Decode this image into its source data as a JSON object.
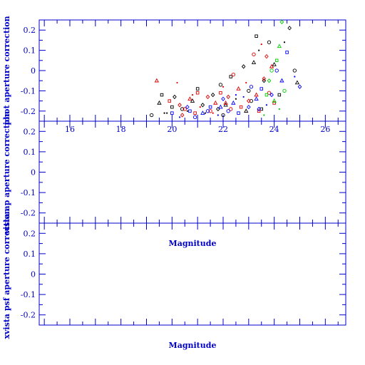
{
  "colors": {
    "axis": "#0000cc",
    "series_black": "#000000",
    "series_red": "#e00000",
    "series_blue": "#0000ff",
    "series_green": "#00cc00"
  },
  "chart_data": [
    {
      "type": "scatter",
      "title": "",
      "xlabel": "",
      "ylabel": "phot aperture correction",
      "xlim": [
        14.8,
        26.8
      ],
      "ylim": [
        -0.25,
        0.25
      ],
      "xticks": [
        16,
        18,
        20,
        22,
        24,
        26
      ],
      "xtick_labels": [
        "16",
        "18",
        "20",
        "22",
        "24",
        "26"
      ],
      "yticks": [
        -0.2,
        -0.1,
        0,
        0.1,
        0.2
      ],
      "ytick_labels": [
        "-0.2",
        "-0.1",
        "0",
        "0.1",
        "0.2"
      ],
      "grid": false,
      "series": [
        {
          "color": "black",
          "marker": "mixed",
          "points": [
            [
              19.2,
              -0.22
            ],
            [
              19.5,
              -0.16
            ],
            [
              19.6,
              -0.12
            ],
            [
              19.8,
              -0.21
            ],
            [
              20.1,
              -0.13
            ],
            [
              20.4,
              -0.19
            ],
            [
              20.8,
              -0.15
            ],
            [
              21.0,
              -0.09
            ],
            [
              21.3,
              -0.21
            ],
            [
              21.6,
              -0.12
            ],
            [
              21.9,
              -0.07
            ],
            [
              22.1,
              -0.17
            ],
            [
              22.3,
              -0.03
            ],
            [
              22.5,
              -0.14
            ],
            [
              22.8,
              0.02
            ],
            [
              23.0,
              -0.1
            ],
            [
              23.2,
              0.04
            ],
            [
              23.3,
              0.17
            ],
            [
              23.4,
              0.1
            ],
            [
              23.6,
              -0.05
            ],
            [
              23.8,
              0.14
            ],
            [
              24.0,
              0.03
            ],
            [
              24.2,
              -0.12
            ],
            [
              24.4,
              0.14
            ],
            [
              24.6,
              0.21
            ],
            [
              24.8,
              0.0
            ],
            [
              24.9,
              -0.06
            ],
            [
              20.0,
              -0.18
            ],
            [
              20.6,
              -0.2
            ],
            [
              21.2,
              -0.17
            ],
            [
              22.0,
              -0.22
            ],
            [
              22.9,
              -0.2
            ],
            [
              23.5,
              -0.19
            ],
            [
              19.7,
              -0.21
            ],
            [
              21.8,
              -0.19
            ],
            [
              23.1,
              -0.15
            ]
          ]
        },
        {
          "color": "red",
          "marker": "mixed",
          "points": [
            [
              19.4,
              -0.05
            ],
            [
              19.9,
              -0.15
            ],
            [
              20.2,
              -0.06
            ],
            [
              20.3,
              -0.17
            ],
            [
              20.5,
              -0.19
            ],
            [
              20.7,
              -0.14
            ],
            [
              20.9,
              -0.21
            ],
            [
              21.1,
              -0.18
            ],
            [
              21.4,
              -0.13
            ],
            [
              21.5,
              -0.2
            ],
            [
              21.7,
              -0.16
            ],
            [
              21.9,
              -0.11
            ],
            [
              22.0,
              -0.08
            ],
            [
              22.2,
              -0.13
            ],
            [
              22.4,
              -0.02
            ],
            [
              22.6,
              -0.09
            ],
            [
              22.7,
              -0.18
            ],
            [
              22.9,
              -0.06
            ],
            [
              23.0,
              -0.15
            ],
            [
              23.2,
              0.08
            ],
            [
              23.3,
              -0.12
            ],
            [
              23.4,
              -0.2
            ],
            [
              23.5,
              0.13
            ],
            [
              23.7,
              0.07
            ],
            [
              23.8,
              -0.11
            ],
            [
              23.9,
              0.02
            ],
            [
              24.0,
              -0.16
            ],
            [
              21.6,
              -0.21
            ],
            [
              20.4,
              -0.22
            ],
            [
              22.3,
              -0.19
            ],
            [
              22.1,
              -0.16
            ],
            [
              21.0,
              -0.11
            ],
            [
              20.8,
              -0.12
            ],
            [
              23.6,
              -0.04
            ]
          ]
        },
        {
          "color": "blue",
          "marker": "mixed",
          "points": [
            [
              20.0,
              -0.21
            ],
            [
              20.3,
              -0.23
            ],
            [
              20.6,
              -0.18
            ],
            [
              20.9,
              -0.23
            ],
            [
              21.2,
              -0.21
            ],
            [
              21.5,
              -0.18
            ],
            [
              21.8,
              -0.22
            ],
            [
              22.0,
              -0.14
            ],
            [
              22.2,
              -0.2
            ],
            [
              22.4,
              -0.16
            ],
            [
              22.6,
              -0.21
            ],
            [
              22.8,
              -0.13
            ],
            [
              23.0,
              -0.18
            ],
            [
              23.1,
              -0.08
            ],
            [
              23.3,
              -0.14
            ],
            [
              23.5,
              -0.09
            ],
            [
              23.7,
              -0.17
            ],
            [
              23.9,
              -0.12
            ],
            [
              24.1,
              0.0
            ],
            [
              24.3,
              -0.05
            ],
            [
              24.5,
              0.09
            ],
            [
              24.8,
              -0.03
            ],
            [
              25.0,
              -0.08
            ],
            [
              21.4,
              -0.2
            ],
            [
              21.9,
              -0.18
            ],
            [
              20.7,
              -0.2
            ],
            [
              22.5,
              -0.12
            ],
            [
              23.4,
              -0.19
            ]
          ]
        },
        {
          "color": "green",
          "marker": "mixed",
          "points": [
            [
              23.6,
              -0.22
            ],
            [
              23.8,
              -0.05
            ],
            [
              23.9,
              0.0
            ],
            [
              24.0,
              -0.15
            ],
            [
              24.1,
              0.05
            ],
            [
              24.2,
              -0.19
            ],
            [
              24.3,
              0.24
            ],
            [
              24.4,
              -0.1
            ],
            [
              24.2,
              0.12
            ],
            [
              23.7,
              -0.12
            ]
          ]
        }
      ]
    },
    {
      "type": "scatter",
      "title": "",
      "xlabel": "Magnitude",
      "ylabel": "vista ap aperture correction",
      "xlim": [
        14.8,
        26.8
      ],
      "ylim": [
        -0.25,
        0.25
      ],
      "yticks": [
        -0.2,
        -0.1,
        0,
        0.1,
        0.2
      ],
      "ytick_labels": [
        "-0.2",
        "-0.1",
        "0",
        "0.1",
        "0.2"
      ],
      "grid": false,
      "series": []
    },
    {
      "type": "scatter",
      "title": "",
      "xlabel": "Magnitude",
      "ylabel": "xvista psf aperture correction",
      "xlim": [
        14.8,
        26.8
      ],
      "ylim": [
        -0.25,
        0.25
      ],
      "yticks": [
        -0.2,
        -0.1,
        0,
        0.1,
        0.2
      ],
      "ytick_labels": [
        "-0.2",
        "-0.1",
        "0",
        "0.1",
        "0.2"
      ],
      "grid": false,
      "series": []
    }
  ]
}
